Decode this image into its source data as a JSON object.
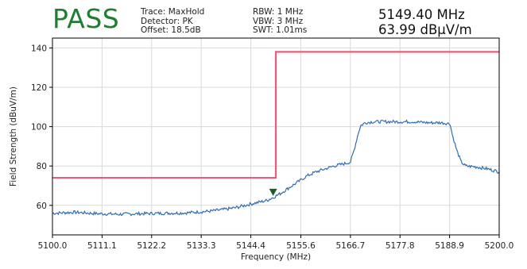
{
  "status": "PASS",
  "params_left": [
    "Trace: MaxHold",
    "Detector: PK",
    "Offset: 18.5dB"
  ],
  "params_right": [
    "RBW: 1 MHz",
    "VBW: 3 MHz",
    "SWT: 1.01ms"
  ],
  "marker_readout": {
    "frequency": "5149.40 MHz",
    "level": "63.99 dBµV/m"
  },
  "colors": {
    "status": "#1e7f32",
    "trace": "#2f6db3",
    "limit": "#ec5b7a",
    "marker": "#1f5c2c",
    "grid": "#d9d9d9"
  },
  "chart_data": {
    "type": "line",
    "xlabel": "Frequency (MHz)",
    "ylabel": "Field Strength (dBuV/m)",
    "xlim": [
      5100.0,
      5200.0
    ],
    "ylim": [
      45,
      145
    ],
    "x_ticks": [
      5100.0,
      5111.1,
      5122.2,
      5133.3,
      5144.4,
      5155.6,
      5166.7,
      5177.8,
      5188.9,
      5200.0
    ],
    "x_tick_labels": [
      "5100.0",
      "5111.1",
      "5122.2",
      "5133.3",
      "5144.4",
      "5155.6",
      "5166.7",
      "5177.8",
      "5188.9",
      "5200.0"
    ],
    "y_ticks": [
      60,
      80,
      100,
      120,
      140
    ],
    "y_tick_labels": [
      "60",
      "80",
      "100",
      "120",
      "140"
    ],
    "grid": true,
    "marker": {
      "x": 5149.4,
      "y": 63.99
    },
    "series": [
      {
        "role": "limit",
        "x": [
          5100.0,
          5150.0,
          5150.0,
          5200.0
        ],
        "y": [
          74,
          74,
          138,
          138
        ]
      },
      {
        "role": "trace",
        "x": [
          5100.0,
          5105.0,
          5110.0,
          5115.0,
          5120.0,
          5125.0,
          5130.0,
          5135.0,
          5138.0,
          5141.0,
          5144.0,
          5146.0,
          5148.0,
          5149.4,
          5151.0,
          5153.0,
          5155.0,
          5157.0,
          5159.0,
          5161.0,
          5163.0,
          5165.0,
          5166.7,
          5167.5,
          5168.5,
          5169.0,
          5170.0,
          5172.0,
          5175.0,
          5178.0,
          5181.0,
          5184.0,
          5187.0,
          5189.0,
          5189.5,
          5190.5,
          5191.5,
          5192.5,
          5195.0,
          5197.5,
          5200.0
        ],
        "y": [
          56,
          56.5,
          55.8,
          55.5,
          55.8,
          56,
          56.2,
          57,
          57.8,
          58.8,
          60.5,
          61.5,
          62.5,
          64,
          66,
          69,
          72,
          75,
          77,
          78.5,
          80,
          81,
          82,
          88,
          97,
          100.5,
          102,
          102.5,
          102.5,
          102.5,
          102.5,
          102,
          102,
          101.5,
          96,
          88,
          82,
          80,
          79.5,
          78.5,
          77
        ]
      }
    ]
  }
}
